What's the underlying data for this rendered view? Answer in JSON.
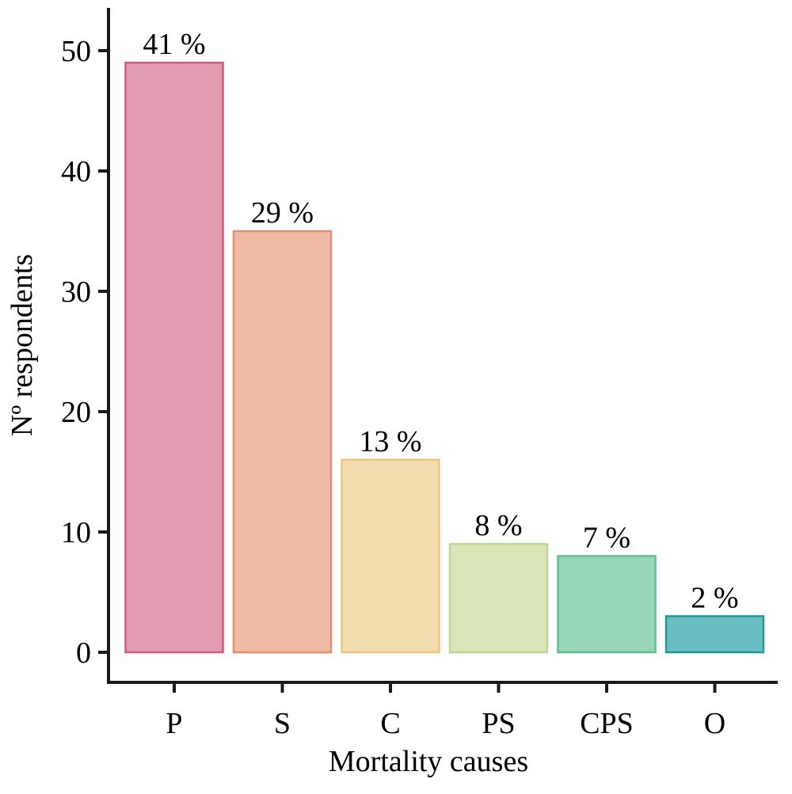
{
  "chart_data": {
    "type": "bar",
    "title": "",
    "xlabel": "Mortality causes",
    "ylabel": "Nº respondents",
    "categories": [
      "P",
      "S",
      "C",
      "PS",
      "CPS",
      "O"
    ],
    "values": [
      49,
      35,
      16,
      9,
      8,
      3
    ],
    "data_labels": [
      "41 %",
      "29 %",
      "13 %",
      "8 %",
      "7 %",
      "2 %"
    ],
    "yticks": [
      0,
      10,
      20,
      30,
      40,
      50
    ],
    "ylim": [
      0,
      50
    ],
    "grid": false,
    "legend": "none",
    "colors": {
      "fills": [
        "#e29bb0",
        "#efbba5",
        "#f2ddb0",
        "#dae6b9",
        "#98d6b8",
        "#69bcbf"
      ],
      "strokes": [
        "#cc5a82",
        "#e58d6f",
        "#ecc67f",
        "#bcd78f",
        "#5ec192",
        "#1f9a96"
      ],
      "axis": "#1a1a1a"
    }
  }
}
